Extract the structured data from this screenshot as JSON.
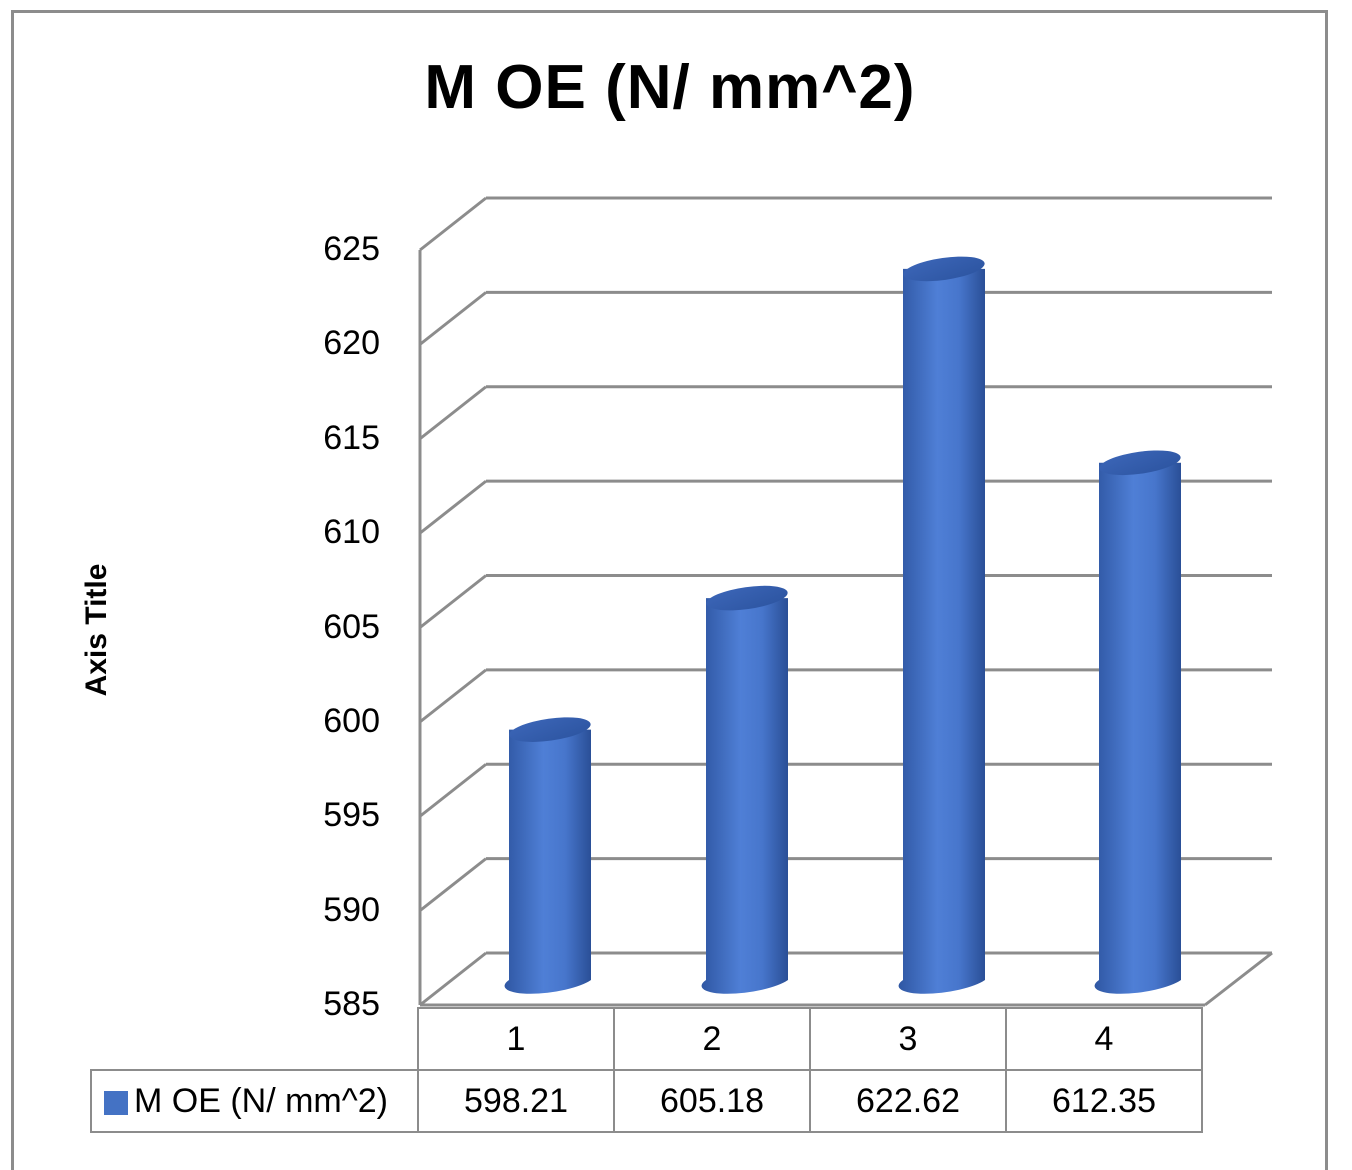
{
  "chart_data": {
    "type": "bar",
    "style": "3d-cylinder",
    "title": "M OE (N/ mm^2)",
    "xlabel": "",
    "ylabel": "Axis Title",
    "categories": [
      "1",
      "2",
      "3",
      "4"
    ],
    "series": [
      {
        "name": "M OE (N/ mm^2)",
        "color": "#4472c4",
        "values": [
          598.21,
          605.18,
          622.62,
          612.35
        ]
      }
    ],
    "ylim": [
      585,
      625
    ],
    "yticks": [
      585,
      590,
      595,
      600,
      605,
      610,
      615,
      620,
      625
    ],
    "grid": true,
    "legend_position": "data-table",
    "data_table": true
  },
  "ui": {
    "title": "M OE (N/ mm^2)",
    "y_axis_title": "Axis Title",
    "y_ticks": [
      "625",
      "620",
      "615",
      "610",
      "605",
      "600",
      "595",
      "590",
      "585"
    ],
    "table": {
      "categories": [
        "1",
        "2",
        "3",
        "4"
      ],
      "legend_label": "M OE (N/ mm^2)",
      "values": [
        "598.21",
        "605.18",
        "622.62",
        "612.35"
      ]
    }
  }
}
